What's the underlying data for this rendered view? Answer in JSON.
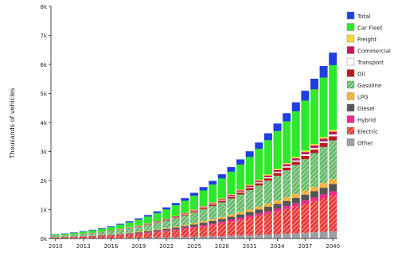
{
  "chart_data": {
    "type": "bar",
    "stacked": true,
    "title": "",
    "xlabel": "",
    "ylabel": "Thousands of vehicles",
    "ylim": [
      0,
      8000
    ],
    "yticks": [
      0,
      1000,
      2000,
      3000,
      4000,
      5000,
      6000,
      7000,
      8000
    ],
    "ytick_labels": [
      "0k",
      "1k",
      "2k",
      "3k",
      "4k",
      "5k",
      "6k",
      "7k",
      "8k"
    ],
    "categories": [
      "2010",
      "2011",
      "2012",
      "2013",
      "2014",
      "2015",
      "2016",
      "2017",
      "2018",
      "2019",
      "2020",
      "2021",
      "2022",
      "2023",
      "2024",
      "2025",
      "2026",
      "2027",
      "2028",
      "2029",
      "2030",
      "2031",
      "2032",
      "2033",
      "2034",
      "2035",
      "2036",
      "2037",
      "2038",
      "2039",
      "2040"
    ],
    "xtick_labels": [
      "2010",
      "2013",
      "2016",
      "2019",
      "2022",
      "2025",
      "2028",
      "2031",
      "2034",
      "2037",
      "2040"
    ],
    "grid": false,
    "legend_position": "right",
    "series": [
      {
        "name": "Other",
        "color": "#9aa0a6",
        "pattern": "solid",
        "values": [
          5,
          6,
          7,
          9,
          10,
          12,
          14,
          17,
          20,
          24,
          28,
          33,
          38,
          44,
          50,
          57,
          64,
          72,
          81,
          90,
          100,
          111,
          123,
          136,
          150,
          165,
          180,
          196,
          213,
          231,
          250
        ]
      },
      {
        "name": "Electric",
        "color": "#e53935",
        "pattern": "hatch",
        "values": [
          30,
          35,
          42,
          50,
          60,
          72,
          86,
          102,
          120,
          140,
          163,
          188,
          216,
          247,
          281,
          318,
          358,
          401,
          447,
          496,
          548,
          603,
          661,
          722,
          786,
          853,
          923,
          996,
          1072,
          1151,
          1233
        ]
      },
      {
        "name": "Hybrid",
        "color": "#ec2a8a",
        "pattern": "solid",
        "values": [
          3,
          4,
          5,
          6,
          7,
          8,
          10,
          12,
          14,
          16,
          19,
          22,
          25,
          29,
          33,
          37,
          42,
          47,
          52,
          58,
          64,
          70,
          77,
          84,
          92,
          100,
          108,
          117,
          126,
          135,
          145
        ]
      },
      {
        "name": "Diesel",
        "color": "#555555",
        "pattern": "solid",
        "values": [
          8,
          9,
          11,
          13,
          15,
          18,
          21,
          25,
          29,
          34,
          39,
          45,
          51,
          58,
          65,
          73,
          81,
          90,
          99,
          109,
          119,
          130,
          141,
          153,
          165,
          178,
          191,
          205,
          219,
          234,
          250
        ]
      },
      {
        "name": "LPG",
        "color": "#f9a825",
        "pattern": "hatch",
        "values": [
          5,
          6,
          7,
          8,
          10,
          12,
          14,
          16,
          19,
          22,
          25,
          29,
          33,
          37,
          42,
          47,
          53,
          59,
          65,
          72,
          79,
          87,
          95,
          103,
          112,
          121,
          131,
          141,
          152,
          163,
          175
        ]
      },
      {
        "name": "Gasoline",
        "color": "#66bb6a",
        "pattern": "hatch",
        "values": [
          40,
          46,
          54,
          64,
          76,
          90,
          106,
          124,
          145,
          168,
          194,
          223,
          254,
          288,
          325,
          365,
          408,
          454,
          503,
          555,
          610,
          668,
          729,
          793,
          860,
          930,
          1003,
          1079,
          1158,
          1240,
          1325
        ]
      },
      {
        "name": "Oil",
        "color": "#b71c1c",
        "pattern": "solid",
        "values": [
          4,
          5,
          6,
          7,
          8,
          9,
          11,
          13,
          15,
          17,
          20,
          23,
          26,
          30,
          34,
          38,
          43,
          48,
          53,
          59,
          65,
          71,
          78,
          85,
          92,
          100,
          108,
          117,
          126,
          135,
          145
        ]
      },
      {
        "name": "Transport",
        "color": "#ffffff",
        "pattern": "solid",
        "values": [
          2,
          2,
          3,
          3,
          4,
          4,
          5,
          6,
          7,
          8,
          9,
          10,
          12,
          13,
          15,
          17,
          19,
          21,
          23,
          25,
          28,
          30,
          33,
          36,
          39,
          42,
          45,
          49,
          52,
          56,
          60
        ]
      },
      {
        "name": "Commercial",
        "color": "#c2185b",
        "pattern": "solid",
        "values": [
          3,
          4,
          4,
          5,
          6,
          7,
          8,
          10,
          11,
          13,
          15,
          17,
          19,
          22,
          25,
          28,
          31,
          34,
          38,
          42,
          46,
          50,
          55,
          60,
          65,
          70,
          76,
          82,
          88,
          94,
          100
        ]
      },
      {
        "name": "Freight",
        "color": "#fdd835",
        "pattern": "solid",
        "values": [
          2,
          2,
          3,
          3,
          4,
          4,
          5,
          6,
          7,
          8,
          9,
          10,
          12,
          13,
          15,
          17,
          19,
          21,
          23,
          25,
          28,
          30,
          33,
          36,
          39,
          42,
          45,
          49,
          52,
          56,
          60
        ]
      },
      {
        "name": "Car Fleet",
        "color": "#2ee82e",
        "pattern": "solid",
        "values": [
          40,
          48,
          57,
          69,
          83,
          100,
          120,
          143,
          170,
          201,
          235,
          273,
          316,
          364,
          417,
          475,
          540,
          610,
          687,
          771,
          862,
          960,
          1066,
          1180,
          1302,
          1433,
          1573,
          1723,
          1882,
          2052,
          2232
        ]
      },
      {
        "name": "Total",
        "color": "#1f3fe0",
        "pattern": "solid",
        "values": [
          10,
          12,
          14,
          17,
          20,
          24,
          28,
          33,
          39,
          45,
          52,
          60,
          69,
          79,
          90,
          102,
          115,
          129,
          144,
          160,
          178,
          197,
          217,
          238,
          261,
          285,
          311,
          338,
          367,
          397,
          430
        ]
      }
    ]
  }
}
